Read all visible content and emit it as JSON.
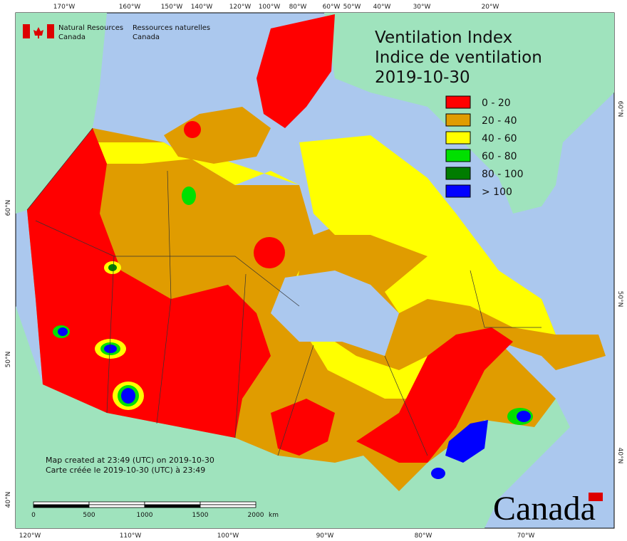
{
  "header": {
    "english": [
      "Natural Resources",
      "Canada"
    ],
    "french": [
      "Ressources naturelles",
      "Canada"
    ]
  },
  "title": {
    "line1": "Ventilation Index",
    "line2": "Indice de ventilation",
    "date": "2019-10-30"
  },
  "legend": [
    {
      "label": "0 - 20",
      "color": "#ff0000"
    },
    {
      "label": "20 - 40",
      "color": "#e09c00"
    },
    {
      "label": "40 - 60",
      "color": "#ffff00"
    },
    {
      "label": "60 - 80",
      "color": "#00e000"
    },
    {
      "label": "80 - 100",
      "color": "#007c00"
    },
    {
      "label": "> 100",
      "color": "#0000ff"
    }
  ],
  "graticule": {
    "top": [
      "170°W",
      "160°W",
      "150°W",
      "140°W",
      "120°W",
      "100°W",
      "80°W",
      "60°W",
      "50°W",
      "40°W",
      "30°W",
      "20°W"
    ],
    "bottom": [
      "120°W",
      "110°W",
      "100°W",
      "90°W",
      "80°W",
      "70°W"
    ],
    "left": [
      "60°N",
      "50°N",
      "40°N"
    ],
    "right": [
      "60°N",
      "50°N",
      "40°N"
    ]
  },
  "notes": [
    "Map created at 23:49 (UTC) on 2019-10-30",
    "Carte créée le 2019-10-30 (UTC) à 23:49"
  ],
  "scale_bar": {
    "labels": [
      0,
      500,
      1000,
      1500,
      2000
    ],
    "unit": "km"
  },
  "wordmark": "Canada"
}
